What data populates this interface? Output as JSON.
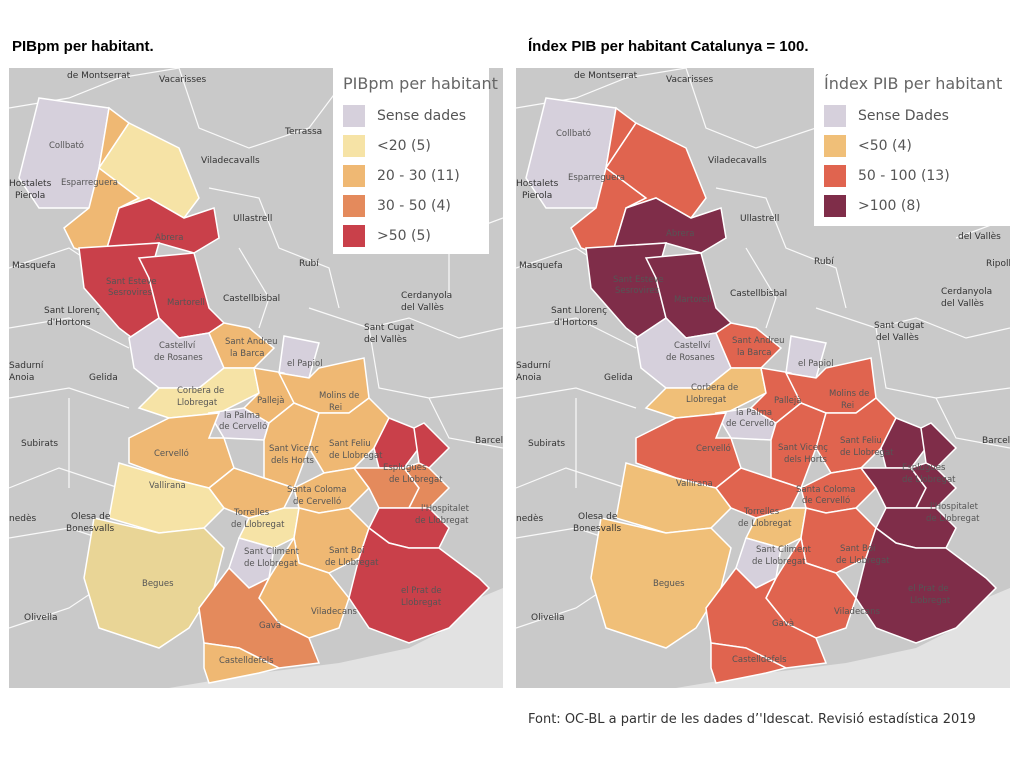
{
  "left": {
    "title": "PIBpm per habitant.",
    "legend_title": "PIBpm per habitant",
    "legend": [
      {
        "label": "Sense dades",
        "color": "#d6d0dc"
      },
      {
        "label": "<20 (5)",
        "color": "#f6e3a6"
      },
      {
        "label": "20 - 30 (11)",
        "color": "#efb873"
      },
      {
        "label": "30 - 50 (4)",
        "color": "#e48a5c"
      },
      {
        "label": ">50 (5)",
        "color": "#c9404a"
      }
    ]
  },
  "right": {
    "title": "Índex PIB  per habitant Catalunya = 100.",
    "legend_title": "Índex PIB per habitant",
    "legend": [
      {
        "label": "Sense Dades",
        "color": "#d6d0dc"
      },
      {
        "label": "<50 (4)",
        "color": "#f0bf78"
      },
      {
        "label": "50 - 100 (13)",
        "color": "#e0644f"
      },
      {
        "label": ">100 (8)",
        "color": "#7f2d49"
      }
    ]
  },
  "places": {
    "montserrat": "de Montserrat",
    "vacarisses": "Vacarisses",
    "terrassa": "Terrassa",
    "viladecavalls": "Viladecavalls",
    "hostalets": "Hostalets",
    "pierola": "Pierola",
    "ullastrell": "Ullastrell",
    "masquefa": "Masquefa",
    "rubi": "Rubí",
    "castellbisbal": "Castellbisbal",
    "sant_llorenc": "Sant Llorenç",
    "dhortons": "d'Hortons",
    "cerdanyola": "Cerdanyola",
    "del_valles": "del Vallès",
    "sant_cugat": "Sant Cugat",
    "sant_cugat_2": "del Vallès",
    "sadurni": "Sadurní",
    "noia": "Anoia",
    "gelida": "Gelida",
    "subirats": "Subirats",
    "barcelona": "Barcelo",
    "olesa": "Olesa de",
    "bonesvalls": "Bonesvalls",
    "olivella": "Olivella",
    "penedes": "nedès",
    "ripollet": "Ripolle",
    "del_valles_top": "del Vallès"
  },
  "municipalities": {
    "collbato": "Collbató",
    "esparreguera": "Esparreguera",
    "abrera": "Abrera",
    "sant_esteve": "Sant Esteve",
    "sesrovires": "Sesrovires",
    "martorell": "Martorell",
    "castellvi": "Castellví",
    "de_rosanes": "de Rosanes",
    "sant_andreu": "Sant Andreu",
    "la_barca": "la Barca",
    "el_papiol": "el Papiol",
    "corbera": "Corbera de",
    "llobregat": "Llobregat",
    "la_palma": "la Palma",
    "de_cervello": "de Cervelló",
    "palleja": "Pallejà",
    "molins": "Molins de",
    "rei": "Rei",
    "cervello": "Cervelló",
    "sant_vicenc": "Sant Vicenç",
    "dels_horts": "dels Horts",
    "sant_feliu": "Sant Feliu",
    "de_llobregat": "de Llobregat",
    "esplugues": "Esplugues",
    "esplugues_2": "de Llobregat",
    "vallirana": "Vallirana",
    "santa_coloma": "Santa Coloma",
    "santa_coloma_2": "de Cervelló",
    "torrelles": "Torrelles",
    "torrelles_2": "de Llobregat",
    "hospitalet": "l'Hospitalet",
    "hospitalet_2": "de Llobregat",
    "sant_climent": "Sant Climent",
    "sant_climent_2": "de Llobregat",
    "sant_boi": "Sant Boi",
    "sant_boi_2": "de Llobregat",
    "begues": "Begues",
    "viladecans": "Viladecans",
    "el_prat": "el Prat de",
    "el_prat_2": "Llobregat",
    "gava": "Gavà",
    "castelldefels": "Castelldefels"
  },
  "source": "Font: OC-BL a partir de les dades d’'Idescat. Revisió estadística 2019"
}
